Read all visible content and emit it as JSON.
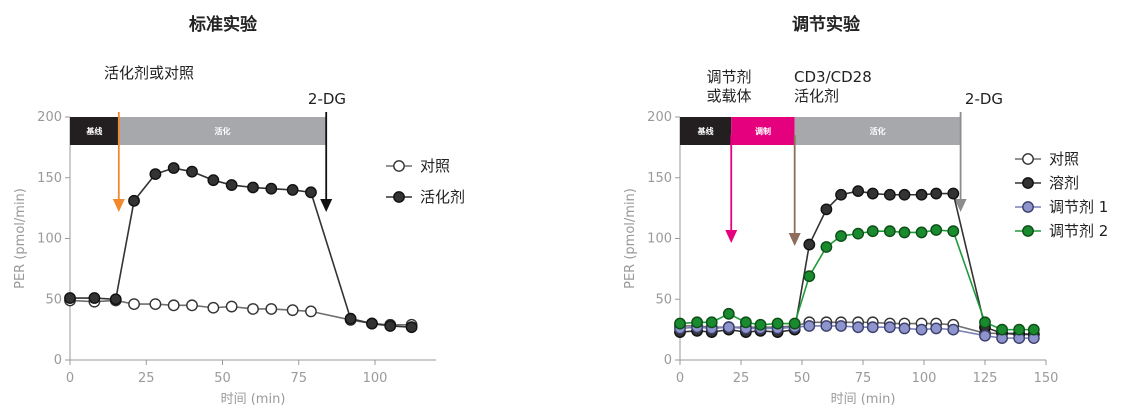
{
  "colors": {
    "axis": "#9a9a9a",
    "baseline_band": "#231f20",
    "modulate_band": "#e5007e",
    "activation_band": "#a6a8ab",
    "orange_arrow": "#f28a2d",
    "magenta_arrow": "#e5007e",
    "brown_arrow": "#8c6e5a",
    "black_arrow": "#111111",
    "gray_arrow": "#8c8c8c"
  },
  "chart_data": [
    {
      "type": "line",
      "title": "标准实验",
      "xlabel": "时间 (min)",
      "ylabel": "PER (pmol/min)",
      "xlim": [
        0,
        120
      ],
      "ylim": [
        0,
        200
      ],
      "xticks": [
        0,
        25,
        50,
        75,
        100
      ],
      "yticks": [
        0,
        50,
        100,
        150,
        200
      ],
      "bands": [
        {
          "label": "基线",
          "x0": 0,
          "x1": 16,
          "color": "#231f20"
        },
        {
          "label": "活化",
          "x0": 16,
          "x1": 84,
          "color": "#a6a8ab"
        }
      ],
      "annotations": [
        {
          "text": "活化剂或对照",
          "x": 16,
          "color": "#f28a2d"
        },
        {
          "text": "2-DG",
          "x": 84,
          "color": "#111111"
        }
      ],
      "legend_position": "right",
      "series": [
        {
          "name": "对照",
          "marker": "open",
          "line_color": "#6f6f6f",
          "x": [
            0,
            8,
            15,
            21,
            28,
            34,
            40,
            47,
            53,
            60,
            66,
            73,
            79,
            92,
            99,
            105,
            112
          ],
          "y": [
            49,
            48,
            49,
            46,
            46,
            45,
            45,
            43,
            44,
            42,
            42,
            41,
            40,
            33,
            30,
            29,
            29
          ]
        },
        {
          "name": "活化剂",
          "marker": "filled",
          "line_color": "#333333",
          "x": [
            0,
            8,
            15,
            21,
            28,
            34,
            40,
            47,
            53,
            60,
            66,
            73,
            79,
            92,
            99,
            105,
            112
          ],
          "y": [
            51,
            51,
            50,
            131,
            153,
            158,
            155,
            148,
            144,
            142,
            141,
            140,
            138,
            34,
            30,
            28,
            27
          ]
        }
      ]
    },
    {
      "type": "line",
      "title": "调节实验",
      "xlabel": "时间 (min)",
      "ylabel": "PER (pmol/min)",
      "xlim": [
        0,
        150
      ],
      "ylim": [
        0,
        200
      ],
      "xticks": [
        0,
        25,
        50,
        75,
        100,
        125,
        150
      ],
      "yticks": [
        0,
        50,
        100,
        150,
        200
      ],
      "bands": [
        {
          "label": "基线",
          "x0": 0,
          "x1": 21,
          "color": "#231f20"
        },
        {
          "label": "调制",
          "x0": 21,
          "x1": 47,
          "color": "#e5007e"
        },
        {
          "label": "活化",
          "x0": 47,
          "x1": 115,
          "color": "#a6a8ab"
        }
      ],
      "annotations": [
        {
          "text": "调节剂",
          "text2": "或载体",
          "x": 21,
          "color": "#e5007e"
        },
        {
          "text": "CD3/CD28",
          "text2": "活化剂",
          "x": 47,
          "color": "#8c6e5a"
        },
        {
          "text": "2-DG",
          "x": 115,
          "color": "#8c8c8c"
        }
      ],
      "legend_position": "right",
      "series": [
        {
          "name": "对照",
          "marker": "open",
          "line_color": "#6f6f6f",
          "x": [
            0,
            7,
            13,
            20,
            27,
            33,
            40,
            47,
            53,
            60,
            66,
            73,
            79,
            86,
            92,
            99,
            105,
            112,
            125,
            132,
            139,
            145
          ],
          "y": [
            28,
            28,
            27,
            27,
            27,
            27,
            27,
            28,
            31,
            31,
            31,
            31,
            31,
            30,
            30,
            30,
            30,
            29,
            22,
            22,
            22,
            21
          ]
        },
        {
          "name": "溶剂",
          "marker": "filled",
          "line_color": "#333333",
          "x": [
            0,
            7,
            13,
            20,
            27,
            33,
            40,
            47,
            53,
            60,
            66,
            73,
            79,
            86,
            92,
            99,
            105,
            112,
            125,
            132,
            139,
            145
          ],
          "y": [
            23,
            24,
            23,
            25,
            23,
            24,
            23,
            25,
            95,
            124,
            136,
            139,
            137,
            136,
            136,
            136,
            137,
            137,
            27,
            22,
            21,
            21
          ]
        },
        {
          "name": "调节剂 1",
          "marker": "lavender",
          "line_color": "#7a7fb8",
          "x": [
            0,
            7,
            13,
            20,
            27,
            33,
            40,
            47,
            53,
            60,
            66,
            73,
            79,
            86,
            92,
            99,
            105,
            112,
            125,
            132,
            139,
            145
          ],
          "y": [
            26,
            27,
            26,
            27,
            26,
            26,
            26,
            27,
            28,
            28,
            28,
            27,
            27,
            27,
            26,
            25,
            26,
            25,
            20,
            18,
            18,
            18
          ]
        },
        {
          "name": "调节剂 2",
          "marker": "green",
          "line_color": "#1f9a3a",
          "x": [
            0,
            7,
            13,
            20,
            27,
            33,
            40,
            47,
            53,
            60,
            66,
            73,
            79,
            86,
            92,
            99,
            105,
            112,
            125,
            132,
            139,
            145
          ],
          "y": [
            30,
            31,
            31,
            38,
            31,
            29,
            30,
            30,
            69,
            93,
            102,
            104,
            106,
            106,
            105,
            105,
            107,
            106,
            31,
            25,
            25,
            25
          ]
        }
      ]
    }
  ]
}
